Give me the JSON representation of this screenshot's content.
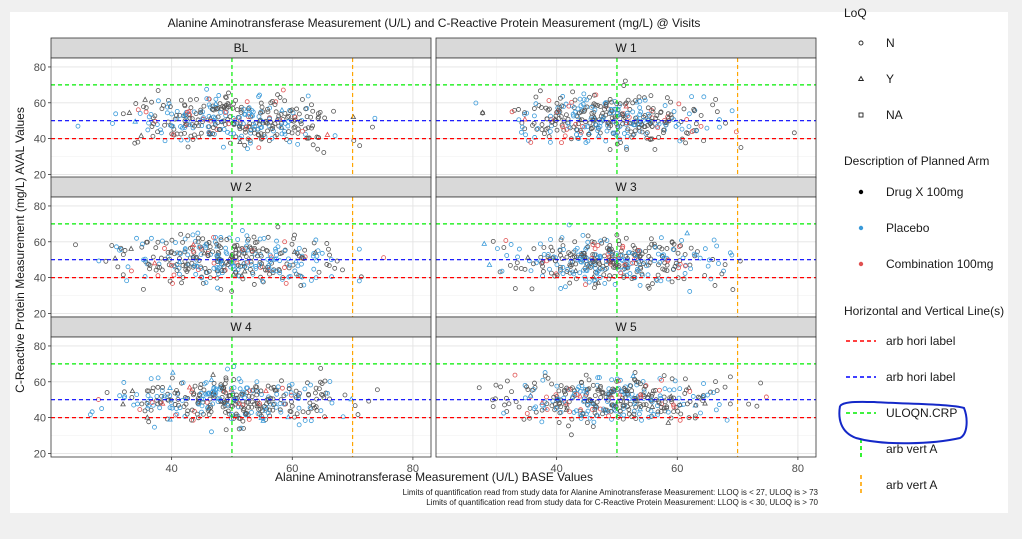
{
  "chart_data": {
    "type": "scatter",
    "title": "Alanine Aminotransferase Measurement (U/L) and C-Reactive Protein Measurement (mg/L) @ Visits",
    "xlabel": "Alanine Aminotransferase Measurement (U/L) BASE Values",
    "ylabel": "C-Reactive Protein Measurement (mg/L) AVAL Values",
    "xlim": [
      20,
      83
    ],
    "ylim": [
      18,
      85
    ],
    "x_ticks": [
      40,
      60,
      80
    ],
    "y_ticks": [
      20,
      40,
      60,
      80
    ],
    "grid": true,
    "panels": [
      "BL",
      "W 1",
      "W 2",
      "W 3",
      "W 4",
      "W 5"
    ],
    "series": [
      {
        "name": "Drug X 100mg",
        "color": "#555555"
      },
      {
        "name": "Placebo",
        "color": "#3a9ad9"
      },
      {
        "name": "Combination 100mg",
        "color": "#e05050"
      }
    ],
    "point_cloud": {
      "x_center": 50,
      "x_spread": 8,
      "y_center": 50,
      "y_spread": 8,
      "points_per_panel": 380
    },
    "reference_lines": {
      "horizontal": [
        {
          "label": "arb hori label",
          "value": 40,
          "color": "#ff0000"
        },
        {
          "label": "arb hori label",
          "value": 50,
          "color": "#0000ff"
        },
        {
          "label": "ULOQN.CRP",
          "value": 70,
          "color": "#00ee00"
        }
      ],
      "vertical": [
        {
          "label": "arb vert A",
          "value": 50,
          "color": "#00ee00"
        },
        {
          "label": "arb vert A",
          "value": 70,
          "color": "#ffa500"
        }
      ]
    }
  },
  "legend": {
    "loq_title": "LoQ",
    "loq_items": [
      {
        "label": "N",
        "shape": "circle"
      },
      {
        "label": "Y",
        "shape": "triangle"
      },
      {
        "label": "NA",
        "shape": "square"
      }
    ],
    "arm_title": "Description of Planned Arm",
    "arm_items": [
      {
        "label": "Drug X 100mg",
        "color": "#000000"
      },
      {
        "label": "Placebo",
        "color": "#3a9ad9"
      },
      {
        "label": "Combination 100mg",
        "color": "#e05050"
      }
    ],
    "lines_title": "Horizontal and Vertical Line(s)",
    "line_items": [
      {
        "label": "arb hori label",
        "color": "#ff0000",
        "orient": "h"
      },
      {
        "label": "arb hori label",
        "color": "#0000ff",
        "orient": "h"
      },
      {
        "label": "ULOQN.CRP",
        "color": "#00ee00",
        "orient": "h"
      },
      {
        "label": "arb vert A",
        "color": "#00ee00",
        "orient": "v"
      },
      {
        "label": "arb vert A",
        "color": "#ffa500",
        "orient": "v"
      }
    ]
  },
  "captions": [
    "Limits of quantification read from study data for Alanine Aminotransferase Measurement: LLOQ is < 27, ULOQ is > 73",
    "Limits of quantification read from study data for C-Reactive Protein Measurement: LLOQ is < 30, ULOQ is > 70"
  ],
  "annotation_color": "#1428c8"
}
